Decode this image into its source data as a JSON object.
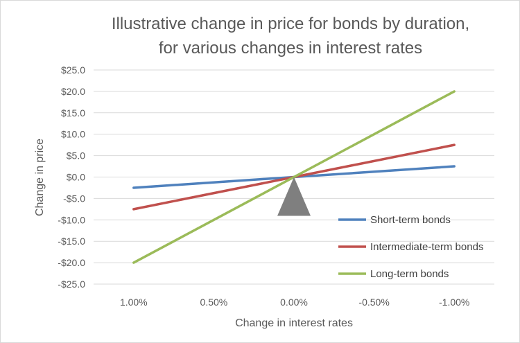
{
  "chart_data": {
    "type": "line",
    "title_lines": [
      "Illustrative change in price for bonds by duration,",
      "for various changes in interest rates"
    ],
    "xlabel": "Change in interest rates",
    "ylabel": "Change in price",
    "categories": [
      "1.00%",
      "0.50%",
      "0.00%",
      "-0.50%",
      "-1.00%"
    ],
    "ylim": [
      -25,
      25
    ],
    "yticks": [
      25,
      20,
      15,
      10,
      5,
      0,
      -5,
      -10,
      -15,
      -20,
      -25
    ],
    "ytick_labels": [
      "$25.0",
      "$20.0",
      "$15.0",
      "$10.0",
      "$5.0",
      "$0.0",
      "-$5.0",
      "-$10.0",
      "-$15.0",
      "-$20.0",
      "-$25.0"
    ],
    "grid": true,
    "legend_position": "bottom-right",
    "series": [
      {
        "name": "Short-term bonds",
        "color": "#4f81bd",
        "x": [
          "1.00%",
          "-1.00%"
        ],
        "values": [
          -2.5,
          2.5
        ]
      },
      {
        "name": "Intermediate-term bonds",
        "color": "#c0504d",
        "x": [
          "1.00%",
          "-1.00%"
        ],
        "values": [
          -7.5,
          7.5
        ]
      },
      {
        "name": "Long-term bonds",
        "color": "#9bbb59",
        "x": [
          "1.00%",
          "-1.00%"
        ],
        "values": [
          -20,
          20
        ]
      }
    ],
    "fulcrum": {
      "x": "0.00%",
      "color": "#7f7f7f"
    }
  }
}
